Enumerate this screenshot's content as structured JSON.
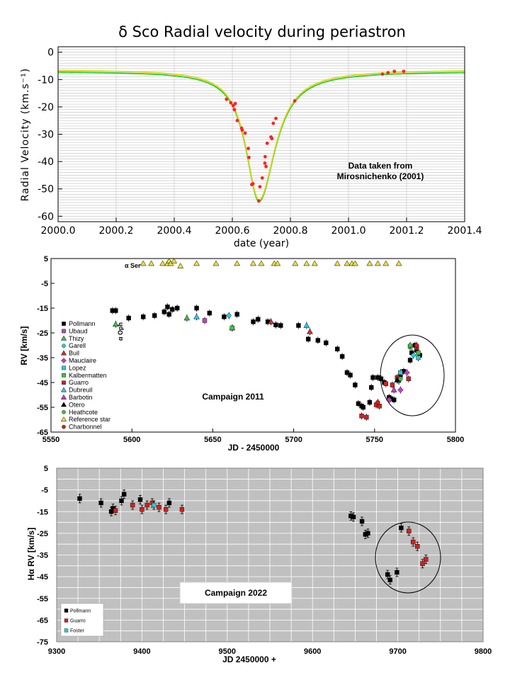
{
  "chart_data": [
    {
      "type": "line",
      "title": "δ Sco Radial velocity during periastron",
      "xlabel": "date (year)",
      "ylabel": "Radial Velocity (km.s⁻¹)",
      "xlim": [
        2000.0,
        2001.4
      ],
      "ylim": [
        -62,
        2
      ],
      "xticks": [
        "2000.0",
        "2000.2",
        "2000.4",
        "2000.6",
        "2000.8",
        "2001.0",
        "2001.2",
        "2001.4"
      ],
      "yticks": [
        "0",
        "-10",
        "-20",
        "-30",
        "-40",
        "-50",
        "-60"
      ],
      "annotation": [
        "Data taken from",
        "Mirosnichenko (2001)"
      ],
      "model": {
        "baseline": -6.4,
        "depth": 47.6,
        "center": 2000.692,
        "width_left": 0.055,
        "width_right": 0.068,
        "colors": [
          "#2ad02a",
          "#e6d21e"
        ]
      },
      "points": [
        [
          2000.58,
          -17.2
        ],
        [
          2000.595,
          -18.5
        ],
        [
          2000.603,
          -19.5
        ],
        [
          2000.607,
          -21.0
        ],
        [
          2000.61,
          -18.8
        ],
        [
          2000.617,
          -25.0
        ],
        [
          2000.632,
          -27.8
        ],
        [
          2000.634,
          -28.5
        ],
        [
          2000.644,
          -29.6
        ],
        [
          2000.655,
          -35.2
        ],
        [
          2000.657,
          -38.5
        ],
        [
          2000.667,
          -48.4
        ],
        [
          2000.671,
          -48.1
        ],
        [
          2000.691,
          -54.4
        ],
        [
          2000.695,
          -49.2
        ],
        [
          2000.703,
          -46.0
        ],
        [
          2000.712,
          -40.6
        ],
        [
          2000.713,
          -38.2
        ],
        [
          2000.716,
          -41.8
        ],
        [
          2000.72,
          -33.3
        ],
        [
          2000.733,
          -31.0
        ],
        [
          2000.736,
          -31.6
        ],
        [
          2000.741,
          -26.0
        ],
        [
          2000.75,
          -24.2
        ],
        [
          2000.815,
          -17.8
        ],
        [
          2001.117,
          -8.0
        ],
        [
          2001.136,
          -7.5
        ],
        [
          2001.158,
          -7.0
        ],
        [
          2001.19,
          -7.0
        ]
      ],
      "point_color": "#ff2222"
    },
    {
      "type": "scatter",
      "title": "Campaign 2011",
      "xlabel": "JD - 2450000",
      "ylabel": "RV [km/s]",
      "xlim": [
        5550,
        5800
      ],
      "ylim": [
        -65,
        5
      ],
      "xticks": [
        "5550",
        "5600",
        "5650",
        "5700",
        "5750",
        "5800"
      ],
      "yticks": [
        "5",
        "-5",
        "-15",
        "-25",
        "-35",
        "-45",
        "-55",
        "-65"
      ],
      "label_alpha_ser": "α Ser",
      "label_alpha_oph": "α Oph",
      "legend": [
        {
          "name": "Pollmann",
          "marker": "square",
          "color": "#000000"
        },
        {
          "name": "Ubaud",
          "marker": "square",
          "color": "#c040c0"
        },
        {
          "name": "Thizy",
          "marker": "triangle",
          "color": "#40c040"
        },
        {
          "name": "Garell",
          "marker": "circle",
          "color": "#30c8e0"
        },
        {
          "name": "Buil",
          "marker": "triangle",
          "color": "#d03030"
        },
        {
          "name": "Mauclaire",
          "marker": "diamond",
          "color": "#c040c0"
        },
        {
          "name": "Lopez",
          "marker": "square",
          "color": "#30c8e0"
        },
        {
          "name": "Kalbermatten",
          "marker": "square",
          "color": "#40c040"
        },
        {
          "name": "Guarro",
          "marker": "square",
          "color": "#d02020"
        },
        {
          "name": "Dubreuil",
          "marker": "triangle",
          "color": "#30c8e0"
        },
        {
          "name": "Barbotin",
          "marker": "triangle",
          "color": "#c040c0"
        },
        {
          "name": "Otero",
          "marker": "triangle",
          "color": "#000000"
        },
        {
          "name": "Heathcote",
          "marker": "circle",
          "color": "#40c040"
        },
        {
          "name": "Reference star",
          "marker": "triangle",
          "color": "#e8e040"
        },
        {
          "name": "Charbonnel",
          "marker": "circle",
          "color": "#d02020"
        }
      ],
      "series": [
        {
          "name": "Pollmann",
          "points": [
            [
              5588,
              -16
            ],
            [
              5590,
              -16
            ],
            [
              5598,
              -19
            ],
            [
              5607,
              -18.5
            ],
            [
              5614,
              -18
            ],
            [
              5620,
              -16.5
            ],
            [
              5622,
              -14.5
            ],
            [
              5623,
              -17.5
            ],
            [
              5625,
              -15.5
            ],
            [
              5628,
              -15
            ],
            [
              5640,
              -15
            ],
            [
              5648,
              -17
            ],
            [
              5657,
              -18.5
            ],
            [
              5665,
              -17.5
            ],
            [
              5675,
              -20.5
            ],
            [
              5678,
              -19.5
            ],
            [
              5684,
              -20.5
            ],
            [
              5689,
              -21.8
            ],
            [
              5692,
              -22
            ],
            [
              5703,
              -22
            ],
            [
              5709,
              -27.5
            ],
            [
              5715,
              -28
            ],
            [
              5720,
              -29
            ],
            [
              5727,
              -31.5
            ],
            [
              5730,
              -34.5
            ],
            [
              5733,
              -41
            ],
            [
              5735,
              -42
            ],
            [
              5738,
              -46
            ],
            [
              5740,
              -53.5
            ],
            [
              5742,
              -54.5
            ],
            [
              5743,
              -55
            ],
            [
              5747,
              -53
            ],
            [
              5748,
              -47
            ],
            [
              5749,
              -43
            ],
            [
              5752,
              -43
            ],
            [
              5754,
              -43.5
            ],
            [
              5756,
              -45
            ],
            [
              5759,
              -51
            ],
            [
              5760,
              -51.5
            ],
            [
              5762,
              -52
            ],
            [
              5766,
              -42
            ],
            [
              5768,
              -40.5
            ],
            [
              5772,
              -36
            ],
            [
              5773,
              -33
            ],
            [
              5775,
              -30
            ],
            [
              5776,
              -32
            ],
            [
              5778,
              -34
            ]
          ]
        },
        {
          "name": "Ubaud",
          "points": [
            [
              5645,
              -20
            ]
          ]
        },
        {
          "name": "Thizy",
          "points": [
            [
              5590,
              -21.5
            ],
            [
              5634,
              -19
            ],
            [
              5662,
              -23
            ]
          ]
        },
        {
          "name": "Garell",
          "points": [
            [
              5660,
              -18
            ],
            [
              5765,
              -44.5
            ],
            [
              5774,
              -34
            ]
          ]
        },
        {
          "name": "Buil",
          "points": [
            [
              5686,
              -20.5
            ],
            [
              5710,
              -24.5
            ]
          ]
        },
        {
          "name": "Mauclaire",
          "points": [
            [
              5759,
              -52
            ],
            [
              5766,
              -48
            ],
            [
              5770,
              -41
            ]
          ]
        },
        {
          "name": "Lopez",
          "points": [
            [
              5766,
              -41
            ],
            [
              5777,
              -35
            ]
          ]
        },
        {
          "name": "Kalbermatten",
          "points": [
            [
              5662,
              -23
            ],
            [
              5772,
              -30.5
            ],
            [
              5777,
              -33
            ]
          ]
        },
        {
          "name": "Guarro",
          "points": [
            [
              5742,
              -58.5
            ],
            [
              5745,
              -59
            ],
            [
              5751,
              -54
            ],
            [
              5753,
              -54.5
            ],
            [
              5757,
              -45.5
            ],
            [
              5761,
              -46
            ],
            [
              5764,
              -43
            ],
            [
              5771,
              -43.5
            ],
            [
              5776,
              -31
            ]
          ]
        },
        {
          "name": "Dubreuil",
          "points": [
            [
              5640,
              -18.5
            ],
            [
              5708,
              -22
            ]
          ]
        },
        {
          "name": "Barbotin",
          "points": [
            [
              5762,
              -48
            ]
          ]
        },
        {
          "name": "Otero",
          "points": [
            [
              5764,
              -44
            ]
          ]
        },
        {
          "name": "Heathcote",
          "points": [
            [
              5766,
              -43.5
            ],
            [
              5772,
              -30
            ]
          ]
        },
        {
          "name": "Reference star",
          "points": [
            [
              5607,
              3
            ],
            [
              5612,
              3
            ],
            [
              5619,
              3
            ],
            [
              5622,
              3
            ],
            [
              5623,
              4
            ],
            [
              5624,
              3
            ],
            [
              5626,
              4
            ],
            [
              5630,
              2
            ],
            [
              5640,
              3
            ],
            [
              5652,
              3
            ],
            [
              5665,
              3
            ],
            [
              5675,
              3
            ],
            [
              5680,
              3
            ],
            [
              5688,
              3
            ],
            [
              5690,
              3
            ],
            [
              5701,
              3
            ],
            [
              5708,
              3
            ],
            [
              5713,
              3
            ],
            [
              5727,
              3
            ],
            [
              5733,
              3
            ],
            [
              5736,
              3
            ],
            [
              5738,
              3
            ],
            [
              5747,
              3
            ],
            [
              5752,
              3
            ],
            [
              5757,
              3
            ],
            [
              5765,
              3
            ]
          ]
        },
        {
          "name": "Charbonnel",
          "points": [
            [
              5752,
              -53
            ],
            [
              5776,
              -30
            ]
          ]
        }
      ]
    },
    {
      "type": "scatter",
      "title": "Campaign 2022",
      "xlabel": "JD 2450000 +",
      "ylabel": "Hα RV [km/s]",
      "xlim": [
        9300,
        9800
      ],
      "ylim": [
        -75,
        5
      ],
      "xticks": [
        "9300",
        "9400",
        "9500",
        "9600",
        "9700",
        "9800"
      ],
      "yticks": [
        "5",
        "-5",
        "-15",
        "-25",
        "-35",
        "-45",
        "-55",
        "-65",
        "-75"
      ],
      "legend": [
        {
          "name": "Pollmann",
          "color": "#000000"
        },
        {
          "name": "Guarro",
          "color": "#d02020"
        },
        {
          "name": "Foster",
          "color": "#30c8c8"
        }
      ],
      "series": [
        {
          "name": "Pollmann",
          "points": [
            [
              9327,
              -9
            ],
            [
              9352,
              -11
            ],
            [
              9364,
              -15
            ],
            [
              9366,
              -13.5
            ],
            [
              9376,
              -10
            ],
            [
              9379,
              -7
            ],
            [
              9398,
              -9.5
            ],
            [
              9432,
              -11
            ],
            [
              9645,
              -17
            ],
            [
              9648,
              -17.5
            ],
            [
              9658,
              -19.5
            ],
            [
              9662,
              -25.5
            ],
            [
              9665,
              -25
            ],
            [
              9688,
              -44
            ],
            [
              9691,
              -46.5
            ],
            [
              9699,
              -43
            ],
            [
              9704,
              -22.5
            ]
          ]
        },
        {
          "name": "Guarro",
          "points": [
            [
              9369,
              -14.5
            ],
            [
              9389,
              -12
            ],
            [
              9400,
              -14
            ],
            [
              9406,
              -12
            ],
            [
              9412,
              -11
            ],
            [
              9420,
              -13
            ],
            [
              9428,
              -14
            ],
            [
              9447,
              -14
            ]
          ]
        },
        {
          "name": "Foster",
          "points": [
            [
              9414,
              -12
            ]
          ]
        }
      ],
      "guarro_late": [
        [
          9713,
          -24
        ],
        [
          9718,
          -29
        ],
        [
          9723,
          -31
        ],
        [
          9729,
          -39
        ],
        [
          9733,
          -37
        ]
      ]
    }
  ]
}
